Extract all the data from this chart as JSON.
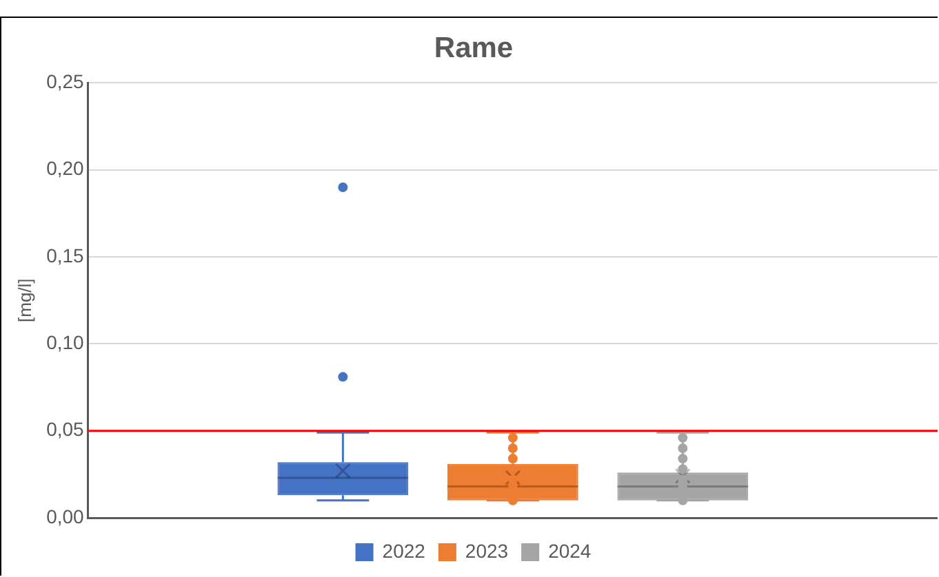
{
  "chart_data": {
    "type": "box",
    "title": "Rame",
    "ylabel": "[mg/l]",
    "categories": [
      null
    ],
    "series": [
      {
        "name": "2022",
        "color": "#4472c4",
        "boxes": [
          {
            "low": 0.01,
            "q1": 0.013,
            "median": 0.023,
            "q3": 0.032,
            "high": 0.049,
            "mean": 0.027,
            "outliers": [
              0.081,
              0.19
            ]
          }
        ]
      },
      {
        "name": "2023",
        "color": "#ed7d31",
        "boxes": [
          {
            "low": 0.01,
            "q1": 0.01,
            "median": 0.018,
            "q3": 0.031,
            "high": 0.049,
            "mean": 0.023,
            "outliers": [
              0.01,
              0.017,
              0.022,
              0.028,
              0.034,
              0.04,
              0.046
            ]
          }
        ]
      },
      {
        "name": "2024",
        "color": "#a5a5a5",
        "boxes": [
          {
            "low": 0.01,
            "q1": 0.01,
            "median": 0.018,
            "q3": 0.026,
            "high": 0.049,
            "mean": 0.024,
            "outliers": [
              0.01,
              0.017,
              0.022,
              0.028,
              0.034,
              0.04,
              0.046
            ]
          }
        ]
      }
    ],
    "ylim": [
      0,
      0.25
    ],
    "yticks": [
      {
        "value": 0,
        "label": "0,00"
      },
      {
        "value": 0.05,
        "label": "0,05"
      },
      {
        "value": 0.1,
        "label": "0,10"
      },
      {
        "value": 0.15,
        "label": "0,15"
      },
      {
        "value": 0.2,
        "label": "0,20"
      },
      {
        "value": 0.25,
        "label": "0,25"
      }
    ],
    "grid": "y",
    "legend": "bottom",
    "ref_lines": [
      {
        "axis": "y",
        "value": 0.05,
        "color": "#ff0000"
      }
    ]
  }
}
